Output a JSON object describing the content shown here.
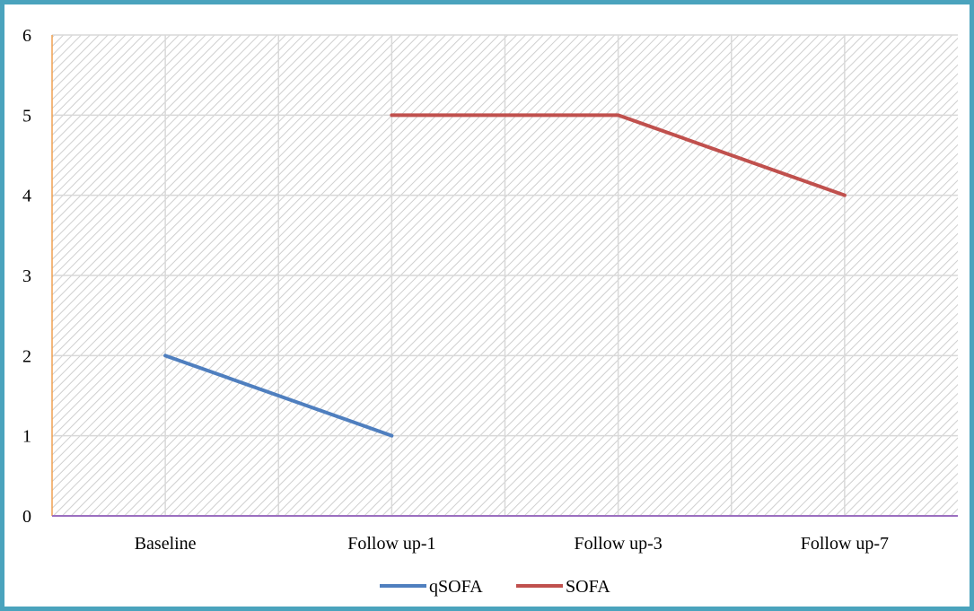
{
  "chart_data": {
    "type": "line",
    "categories": [
      "Baseline",
      "Follow up-1",
      "Follow up-3",
      "Follow up-7"
    ],
    "series": [
      {
        "name": "qSOFA",
        "values": [
          2,
          1,
          null,
          null
        ],
        "color": "#4f7fbf"
      },
      {
        "name": "SOFA",
        "values": [
          null,
          5,
          5,
          4
        ],
        "color": "#c0504d"
      }
    ],
    "yticks": [
      0,
      1,
      2,
      3,
      4,
      5,
      6
    ],
    "ylim": [
      0,
      6
    ],
    "title": "",
    "xlabel": "",
    "ylabel": "",
    "grid": true,
    "plot_background": "hatched",
    "legend_position": "bottom",
    "y_axis_color": "#f0a050",
    "x_axis_color": "#9b6fc0",
    "frame_color": "#4aa3bd"
  }
}
